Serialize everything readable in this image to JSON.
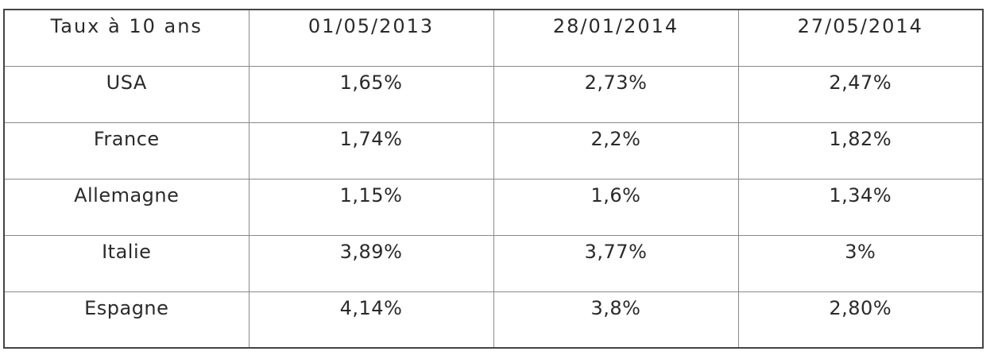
{
  "table": {
    "header": [
      "Taux à 10 ans",
      "01/05/2013",
      "28/01/2014",
      "27/05/2014"
    ],
    "rows": [
      [
        "USA",
        "1,65%",
        "2,73%",
        "2,47%"
      ],
      [
        "France",
        "1,74%",
        "2,2%",
        "1,82%"
      ],
      [
        "Allemagne",
        "1,15%",
        "1,6%",
        "1,34%"
      ],
      [
        "Italie",
        "3,89%",
        "3,77%",
        "3%"
      ],
      [
        "Espagne",
        "4,14%",
        "3,8%",
        "2,80%"
      ]
    ]
  }
}
